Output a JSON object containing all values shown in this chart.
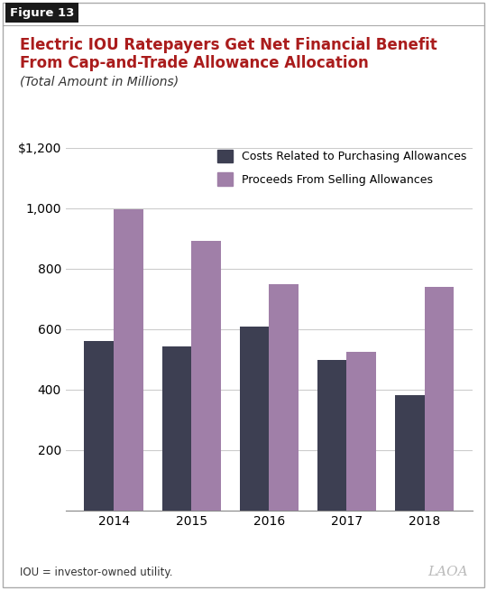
{
  "title_line1": "Electric IOU Ratepayers Get Net Financial Benefit",
  "title_line2": "From Cap-and-Trade Allowance Allocation",
  "subtitle": "(Total Amount in Millions)",
  "figure_label": "Figure 13",
  "years": [
    "2014",
    "2015",
    "2016",
    "2017",
    "2018"
  ],
  "costs": [
    560,
    543,
    607,
    497,
    380
  ],
  "proceeds": [
    997,
    890,
    748,
    524,
    740
  ],
  "costs_color": "#3d3f52",
  "proceeds_color": "#a07fa8",
  "title_color": "#aa1c1c",
  "background_color": "#ffffff",
  "ylim": [
    0,
    1200
  ],
  "yticks": [
    0,
    200,
    400,
    600,
    800,
    1000,
    1200
  ],
  "ytick_labels": [
    "",
    "200",
    "400",
    "600",
    "800",
    "1,000",
    "$1,200"
  ],
  "legend_label1": "Costs Related to Purchasing Allowances",
  "legend_label2": "Proceeds From Selling Allowances",
  "footnote": "IOU = investor-owned utility.",
  "watermark": "LAOA",
  "fig_label_bg": "#1a1a1a",
  "grid_color": "#cccccc",
  "spine_color": "#888888"
}
